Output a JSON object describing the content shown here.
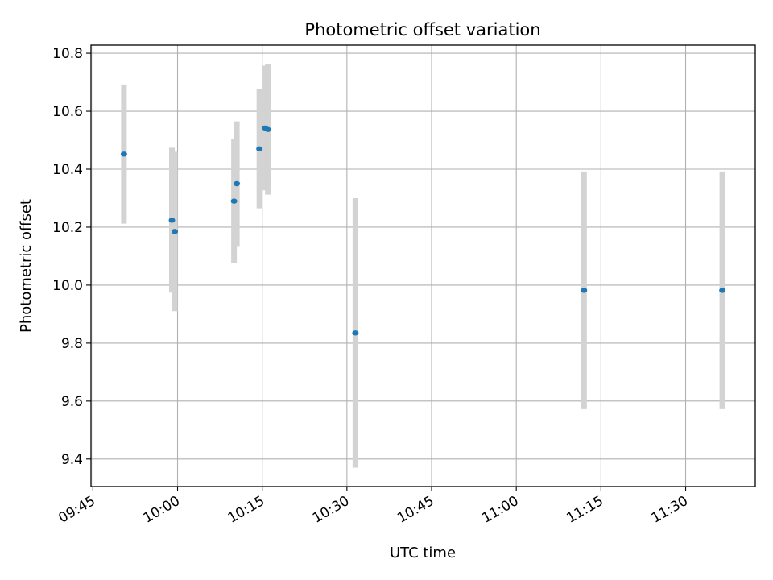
{
  "chart_data": {
    "type": "scatter",
    "title": "Photometric offset variation",
    "xlabel": "UTC time",
    "ylabel": "Photometric offset",
    "x_ticks": [
      "09:45",
      "10:00",
      "10:15",
      "10:30",
      "10:45",
      "11:00",
      "11:15",
      "11:30"
    ],
    "y_ticks": [
      "9.4",
      "9.6",
      "9.8",
      "10.0",
      "10.2",
      "10.4",
      "10.6",
      "10.8"
    ],
    "xlim": [
      "09:44:40",
      "11:42:20"
    ],
    "ylim": [
      9.305,
      10.828
    ],
    "grid": true,
    "point_color": "#1f77b4",
    "errorbar_color": "#d3d3d3",
    "points": [
      {
        "x": "09:50:30",
        "y": 10.452,
        "err": 0.24
      },
      {
        "x": "09:59:00",
        "y": 10.224,
        "err": 0.25
      },
      {
        "x": "09:59:30",
        "y": 10.185,
        "err": 0.275
      },
      {
        "x": "10:10:00",
        "y": 10.29,
        "err": 0.215
      },
      {
        "x": "10:10:30",
        "y": 10.35,
        "err": 0.215
      },
      {
        "x": "10:14:30",
        "y": 10.47,
        "err": 0.205
      },
      {
        "x": "10:15:30",
        "y": 10.542,
        "err": 0.215
      },
      {
        "x": "10:16:00",
        "y": 10.537,
        "err": 0.225
      },
      {
        "x": "10:31:30",
        "y": 9.835,
        "err": 0.465
      },
      {
        "x": "11:12:00",
        "y": 9.982,
        "err": 0.41
      },
      {
        "x": "11:36:30",
        "y": 9.982,
        "err": 0.41
      }
    ]
  }
}
